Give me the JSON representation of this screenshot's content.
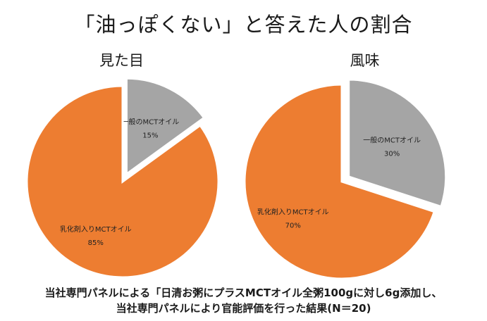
{
  "title": "「油っぽくない」と答えた人の割合",
  "chart_data": [
    {
      "type": "pie",
      "title": "見た目",
      "slices": [
        {
          "label": "一般のMCTオイル",
          "value": 15,
          "value_label": "15%",
          "color": "#a5a5a5",
          "exploded": true
        },
        {
          "label": "乳化剤入りMCTオイル",
          "value": 85,
          "value_label": "85%",
          "color": "#ed7d31",
          "exploded": false
        }
      ]
    },
    {
      "type": "pie",
      "title": "風味",
      "slices": [
        {
          "label": "一般のMCTオイル",
          "value": 30,
          "value_label": "30%",
          "color": "#a5a5a5",
          "exploded": true
        },
        {
          "label": "乳化剤入りMCTオイル",
          "value": 70,
          "value_label": "70%",
          "color": "#ed7d31",
          "exploded": false
        }
      ]
    }
  ],
  "footnote": {
    "line1": "当社専門パネルによる「日清お粥にプラスMCTオイル全粥100gに対し6g添加し、",
    "line2": "当社専門パネルにより官能評価を行った結果(N＝20)"
  }
}
